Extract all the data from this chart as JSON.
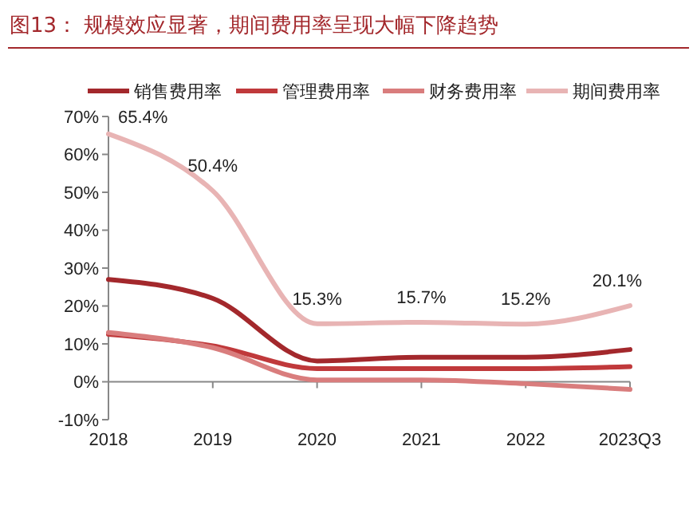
{
  "chart_data": {
    "type": "line",
    "title": "图13： 规模效应显著，期间费用率呈现大幅下降趋势",
    "categories": [
      "2018",
      "2019",
      "2020",
      "2021",
      "2022",
      "2023Q3"
    ],
    "series": [
      {
        "name": "销售费用率",
        "color": "#a3282c",
        "values": [
          27,
          22,
          5.5,
          6.5,
          6.5,
          8.5
        ]
      },
      {
        "name": "管理费用率",
        "color": "#c0393b",
        "values": [
          12.5,
          9.5,
          3.5,
          3.5,
          3.5,
          4
        ]
      },
      {
        "name": "财务费用率",
        "color": "#d97d7d",
        "values": [
          13,
          9,
          0.5,
          0.5,
          -0.5,
          -2
        ]
      },
      {
        "name": "期间费用率",
        "color": "#e8b4b4",
        "values": [
          65.4,
          50.4,
          15.3,
          15.7,
          15.2,
          20.1
        ],
        "value_labels": [
          "65.4%",
          "50.4%",
          "15.3%",
          "15.7%",
          "15.2%",
          "20.1%"
        ]
      }
    ],
    "ylim": [
      -10,
      70
    ],
    "yticks": [
      {
        "value": -10,
        "label": "-10%"
      },
      {
        "value": 0,
        "label": "0%"
      },
      {
        "value": 10,
        "label": "10%"
      },
      {
        "value": 20,
        "label": "20%"
      },
      {
        "value": 30,
        "label": "30%"
      },
      {
        "value": 40,
        "label": "40%"
      },
      {
        "value": 50,
        "label": "50%"
      },
      {
        "value": 60,
        "label": "60%"
      },
      {
        "value": 70,
        "label": "70%"
      }
    ],
    "legend": "top",
    "marker": "none",
    "line_style": "solid"
  }
}
